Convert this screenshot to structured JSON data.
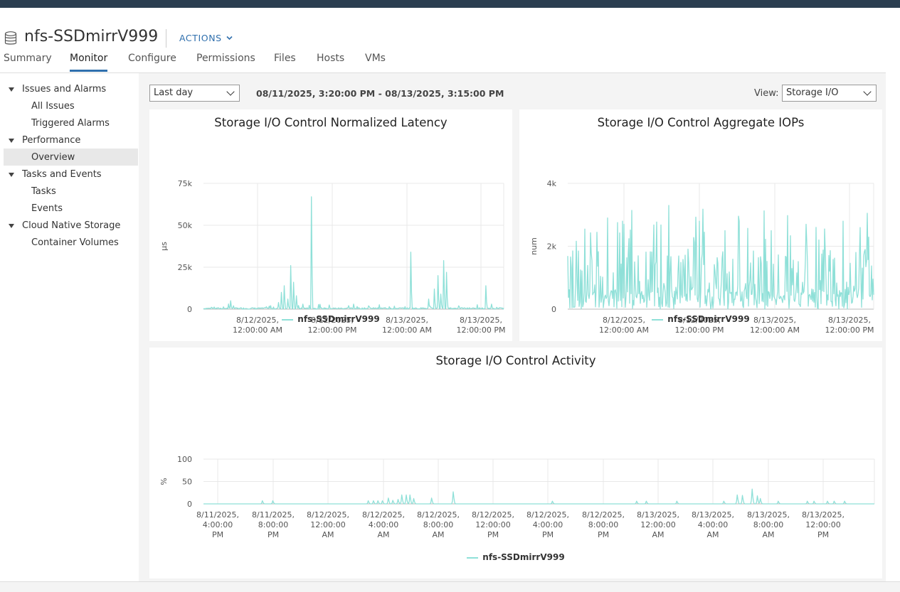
{
  "object": {
    "title": "nfs-SSDmirrV999",
    "actions_label": "ACTIONS",
    "icon": "database-icon"
  },
  "tabs": [
    {
      "label": "Summary",
      "active": false
    },
    {
      "label": "Monitor",
      "active": true
    },
    {
      "label": "Configure",
      "active": false
    },
    {
      "label": "Permissions",
      "active": false
    },
    {
      "label": "Files",
      "active": false
    },
    {
      "label": "Hosts",
      "active": false
    },
    {
      "label": "VMs",
      "active": false
    }
  ],
  "nav": {
    "issues": {
      "label": "Issues and Alarms",
      "all_issues": "All Issues",
      "triggered": "Triggered Alarms"
    },
    "performance": {
      "label": "Performance",
      "overview": "Overview"
    },
    "tasks": {
      "label": "Tasks and Events",
      "tasks": "Tasks",
      "events": "Events"
    },
    "cns": {
      "label": "Cloud Native Storage",
      "container_volumes": "Container Volumes"
    }
  },
  "toolbar": {
    "period": "Last day",
    "range": "08/11/2025, 3:20:00 PM - 08/13/2025, 3:15:00 PM",
    "view_label": "View:",
    "view": "Storage I/O"
  },
  "colors": {
    "series": "#8fe0d8",
    "accent": "#2f6fad",
    "topbar": "#2b3e50"
  },
  "chart_data": [
    {
      "type": "line",
      "title": "Storage I/O Control Normalized Latency",
      "ylabel": "µs",
      "ylim": [
        0,
        75000
      ],
      "yticks": [
        "75k",
        "50k",
        "25k",
        "0"
      ],
      "xticks": [
        [
          "8/12/2025,",
          "12:00:00 AM"
        ],
        [
          "8/12/2025,",
          "12:00:00 PM"
        ],
        [
          "8/13/2025,",
          "12:00:00 AM"
        ],
        [
          "8/13/2025,",
          "12:00:00 PM"
        ]
      ],
      "series": [
        {
          "name": "nfs-SSDmirrV999",
          "spikes": [
            [
              0.1,
              2000
            ],
            [
              0.09,
              5000
            ],
            [
              0.22,
              1800
            ],
            [
              0.25,
              4000
            ],
            [
              0.26,
              10000
            ],
            [
              0.27,
              14000
            ],
            [
              0.28,
              6000
            ],
            [
              0.29,
              26000
            ],
            [
              0.3,
              16000
            ],
            [
              0.31,
              8000
            ],
            [
              0.33,
              3000
            ],
            [
              0.36,
              67000
            ],
            [
              0.42,
              2500
            ],
            [
              0.5,
              3000
            ],
            [
              0.55,
              2000
            ],
            [
              0.62,
              1500
            ],
            [
              0.69,
              34000
            ],
            [
              0.75,
              6000
            ],
            [
              0.77,
              12000
            ],
            [
              0.78,
              20000
            ],
            [
              0.79,
              9000
            ],
            [
              0.8,
              29000
            ],
            [
              0.81,
              22000
            ],
            [
              0.85,
              2000
            ],
            [
              0.94,
              14000
            ],
            [
              0.96,
              3000
            ]
          ]
        }
      ]
    },
    {
      "type": "line",
      "title": "Storage I/O Control Aggregate IOPs",
      "ylabel": "num",
      "ylim": [
        0,
        4000
      ],
      "yticks": [
        "4k",
        "2k",
        "0"
      ],
      "xticks": [
        [
          "8/12/2025,",
          "12:00:00 AM"
        ],
        [
          "8/12/2025,",
          "12:00:00 PM"
        ],
        [
          "8/13/2025,",
          "12:00:00 AM"
        ],
        [
          "8/13/2025,",
          "12:00:00 PM"
        ]
      ],
      "series": [
        {
          "name": "nfs-SSDmirrV999"
        }
      ]
    },
    {
      "type": "line",
      "title": "Storage I/O Control Activity",
      "ylabel": "%",
      "ylim": [
        0,
        100
      ],
      "yticks": [
        "100",
        "50",
        "0"
      ],
      "xticks": [
        [
          "8/11/2025,",
          "4:00:00",
          "PM"
        ],
        [
          "8/11/2025,",
          "8:00:00",
          "PM"
        ],
        [
          "8/12/2025,",
          "12:00:00",
          "AM"
        ],
        [
          "8/12/2025,",
          "4:00:00",
          "AM"
        ],
        [
          "8/12/2025,",
          "8:00:00",
          "AM"
        ],
        [
          "8/12/2025,",
          "12:00:00",
          "PM"
        ],
        [
          "8/12/2025,",
          "4:00:00",
          "PM"
        ],
        [
          "8/12/2025,",
          "8:00:00",
          "PM"
        ],
        [
          "8/13/2025,",
          "12:00:00",
          "AM"
        ],
        [
          "8/13/2025,",
          "4:00:00",
          "AM"
        ],
        [
          "8/13/2025,",
          "8:00:00",
          "AM"
        ],
        [
          "8/13/2025,",
          "12:00:00",
          "PM"
        ]
      ],
      "series": [
        {
          "name": "nfs-SSDmirrV999",
          "spikes": [
            [
              0.088,
              7
            ],
            [
              0.103,
              7
            ],
            [
              0.246,
              7
            ],
            [
              0.253,
              7
            ],
            [
              0.26,
              7
            ],
            [
              0.267,
              7
            ],
            [
              0.275,
              13
            ],
            [
              0.282,
              8
            ],
            [
              0.29,
              10
            ],
            [
              0.295,
              20
            ],
            [
              0.302,
              20
            ],
            [
              0.308,
              20
            ],
            [
              0.313,
              12
            ],
            [
              0.34,
              13
            ],
            [
              0.372,
              27
            ],
            [
              0.52,
              6
            ],
            [
              0.645,
              6
            ],
            [
              0.66,
              6
            ],
            [
              0.705,
              6
            ],
            [
              0.775,
              6
            ],
            [
              0.795,
              20
            ],
            [
              0.803,
              19
            ],
            [
              0.818,
              33
            ],
            [
              0.825,
              18
            ],
            [
              0.83,
              12
            ],
            [
              0.857,
              6
            ],
            [
              0.9,
              6
            ],
            [
              0.91,
              6
            ],
            [
              0.93,
              6
            ],
            [
              0.94,
              6
            ],
            [
              0.955,
              6
            ]
          ]
        }
      ]
    }
  ]
}
